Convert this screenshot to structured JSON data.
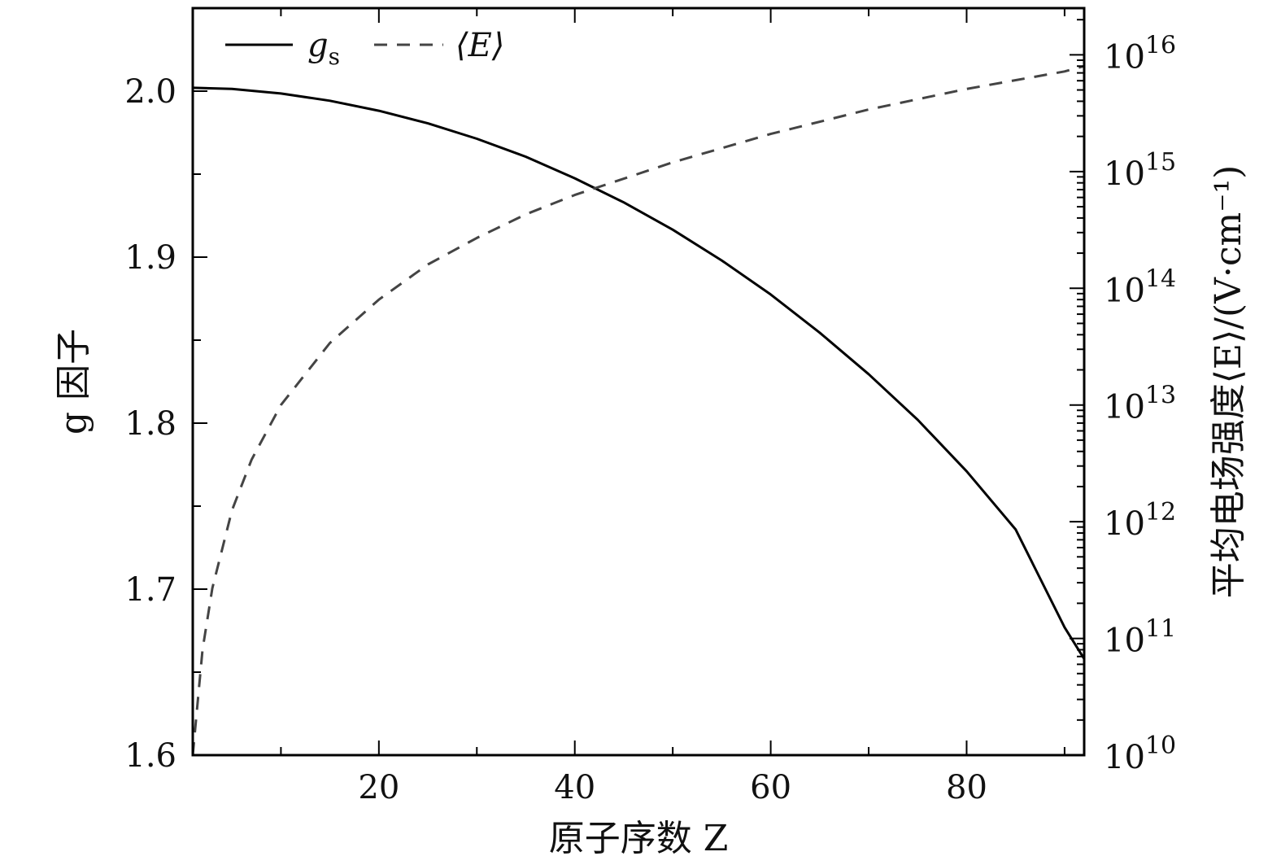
{
  "chart_data": {
    "type": "line",
    "title": "",
    "xlabel": "原子序数 Z",
    "ylabel_left": "g 因子",
    "ylabel_right": "平均电场强度⟨E⟩/(V·cm⁻¹)",
    "xlim": [
      1,
      92
    ],
    "ylim_left": [
      1.6,
      2.05
    ],
    "ylim_right": [
      10000000000.0,
      1e+16
    ],
    "ylim_right_log10": [
      10,
      16.4
    ],
    "y_right_scale": "log",
    "grid": false,
    "legend_position": "top-left",
    "x_ticks": [
      20,
      40,
      60,
      80
    ],
    "x_tick_labels": [
      "20",
      "40",
      "60",
      "80"
    ],
    "y_left_ticks": [
      1.6,
      1.7,
      1.8,
      1.9,
      2.0
    ],
    "y_left_tick_labels": [
      "1.6",
      "1.7",
      "1.8",
      "1.9",
      "2.0"
    ],
    "y_right_tick_exponents": [
      10,
      11,
      12,
      13,
      14,
      15,
      16
    ],
    "y_right_tick_labels": [
      {
        "base": "10",
        "exp": "10"
      },
      {
        "base": "10",
        "exp": "11"
      },
      {
        "base": "10",
        "exp": "12"
      },
      {
        "base": "10",
        "exp": "13"
      },
      {
        "base": "10",
        "exp": "14"
      },
      {
        "base": "10",
        "exp": "15"
      },
      {
        "base": "10",
        "exp": "16"
      }
    ],
    "series": [
      {
        "name": "g_s",
        "label_main": "g",
        "label_sub": "s",
        "axis": "left",
        "style": "solid",
        "color": "#000000",
        "x": [
          1,
          5,
          10,
          15,
          20,
          25,
          30,
          35,
          40,
          45,
          50,
          55,
          60,
          65,
          70,
          75,
          80,
          85,
          90,
          92
        ],
        "y": [
          2.002,
          2.0013,
          1.9986,
          1.9942,
          1.9882,
          1.9806,
          1.9713,
          1.9605,
          1.9475,
          1.933,
          1.9165,
          1.898,
          1.8775,
          1.8545,
          1.8295,
          1.802,
          1.771,
          1.736,
          1.677,
          1.658
        ]
      },
      {
        "name": "⟨E⟩",
        "label_main": "⟨E⟩",
        "axis": "right",
        "style": "dashed",
        "color": "#444444",
        "x": [
          1,
          2,
          3,
          5,
          7,
          10,
          15,
          20,
          25,
          30,
          35,
          40,
          50,
          60,
          70,
          80,
          90,
          92
        ],
        "y": [
          10000000000.0,
          80000000000.0,
          270000000000.0,
          1250000000000.0,
          3400000000000.0,
          10000000000000.0,
          34000000000000.0,
          80000000000000.0,
          160000000000000.0,
          270000000000000.0,
          430000000000000.0,
          630000000000000.0,
          1200000000000000.0,
          2100000000000000.0,
          3400000000000000.0,
          5100000000000000.0,
          7200000000000000.0,
          8000000000000000.0
        ]
      }
    ]
  }
}
